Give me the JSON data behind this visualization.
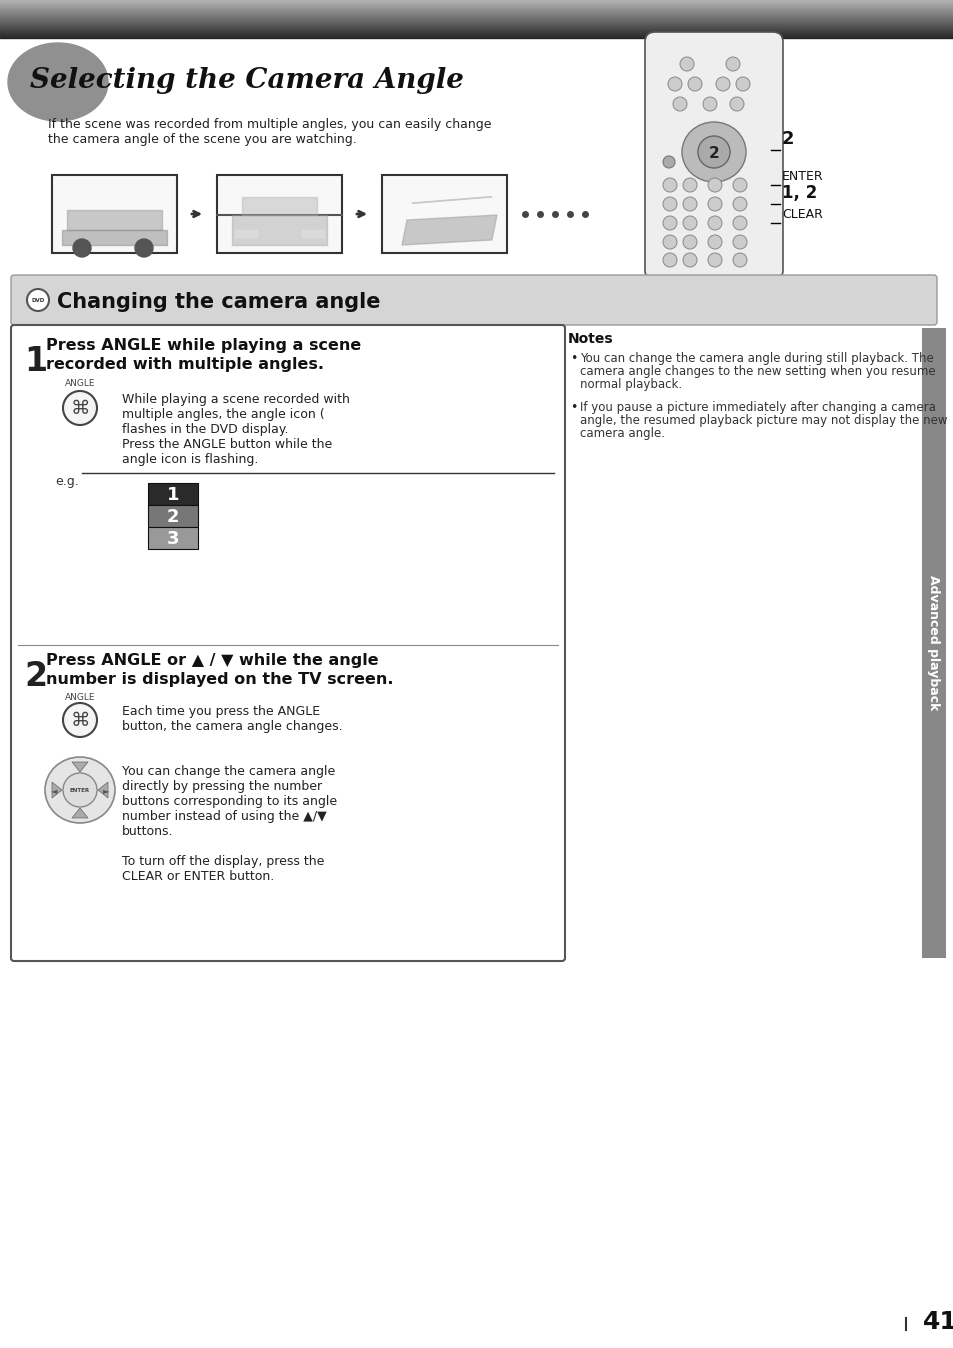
{
  "page_bg": "#ffffff",
  "title_text": "Selecting the Camera Angle",
  "subtitle_line1": "If the scene was recorded from multiple angles, you can easily change",
  "subtitle_line2": "the camera angle of the scene you are watching.",
  "section_header": "Changing the camera angle",
  "step1_title_line1": "Press ANGLE while playing a scene",
  "step1_title_line2": "recorded with multiple angles.",
  "step1_lines": [
    "While playing a scene recorded with",
    "multiple angles, the angle icon (",
    "flashes in the DVD display.",
    "Press the ANGLE button while the",
    "angle icon is flashing."
  ],
  "step2_title_line1": "Press ANGLE or ▲ / ▼ while the angle",
  "step2_title_line2": "number is displayed on the TV screen.",
  "step2_body1_line1": "Each time you press the ANGLE",
  "step2_body1_line2": "button, the camera angle changes.",
  "step2_body2_lines": [
    "You can change the camera angle",
    "directly by pressing the number",
    "buttons corresponding to its angle",
    "number instead of using the ▲/▼",
    "buttons."
  ],
  "step2_body3_line1": "To turn off the display, press the",
  "step2_body3_line2": "CLEAR or ENTER button.",
  "notes_title": "Notes",
  "note1_lines": [
    "You can change the camera angle during still playback. The",
    "camera angle changes to the new setting when you resume",
    "normal playback."
  ],
  "note2_lines": [
    "If you pause a picture immediately after changing a camera",
    "angle, the resumed playback picture may not display the new",
    "camera angle."
  ],
  "sidebar_text": "Advanced playback",
  "page_number": "41",
  "remote_label_2": "2",
  "remote_label_enter": "ENTER",
  "remote_label_12": "1, 2",
  "remote_label_clear": "CLEAR",
  "angle_label": "ANGLE",
  "eg_label": "e.g."
}
